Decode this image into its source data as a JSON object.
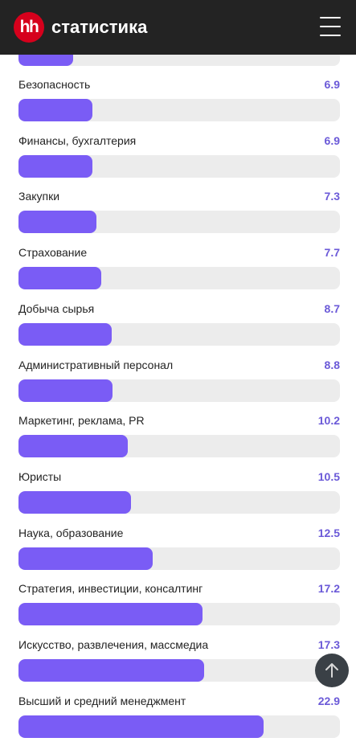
{
  "header": {
    "logo": "hh",
    "title": "статистика"
  },
  "partial_bar": {
    "value": 5.1
  },
  "scale_max": 30,
  "rows": [
    {
      "label": "Безопасность",
      "value": "6.9"
    },
    {
      "label": "Финансы, бухгалтерия",
      "value": "6.9"
    },
    {
      "label": "Закупки",
      "value": "7.3"
    },
    {
      "label": "Страхование",
      "value": "7.7"
    },
    {
      "label": "Добыча сырья",
      "value": "8.7"
    },
    {
      "label": "Административный персонал",
      "value": "8.8"
    },
    {
      "label": "Маркетинг, реклама, PR",
      "value": "10.2"
    },
    {
      "label": "Юристы",
      "value": "10.5"
    },
    {
      "label": "Наука, образование",
      "value": "12.5"
    },
    {
      "label": "Стратегия, инвестиции, консалтинг",
      "value": "17.2"
    },
    {
      "label": "Искусство, развлечения, массмедиа",
      "value": "17.3"
    },
    {
      "label": "Высший и средний менеджмент",
      "value": "22.9"
    }
  ],
  "colors": {
    "accent": "#7a5cf5",
    "value_text": "#6b5ad8",
    "header_bg": "#232323",
    "logo_bg": "#d6001c"
  },
  "icons": {
    "menu": "hamburger-icon",
    "scroll_top": "arrow-up-icon"
  }
}
